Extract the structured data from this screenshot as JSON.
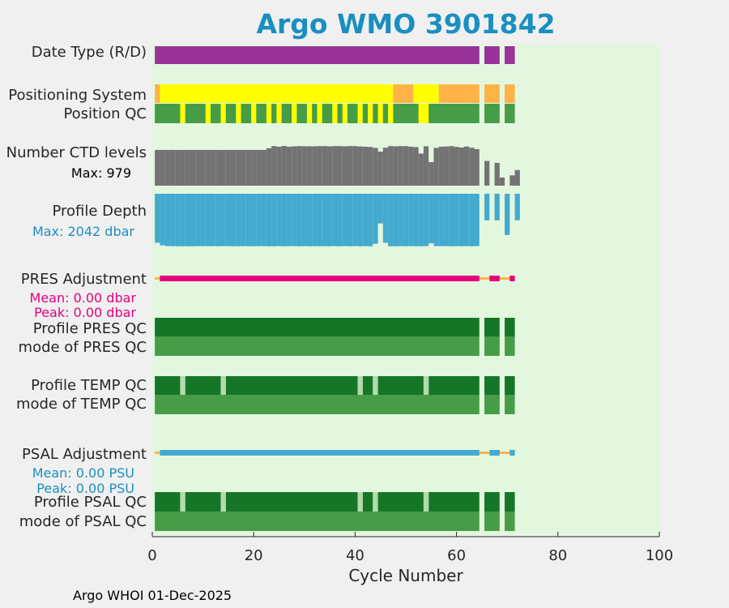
{
  "colors": {
    "background": "#f0f0f0",
    "plot_bg": "#e3f7df",
    "title": "#1a8fc0",
    "date_type": "#993399",
    "pos_gps": "#ffff00",
    "pos_orange": "#ffb347",
    "qc_dark": "#167627",
    "qc_light": "#479c47",
    "qc_pale": "#b3dbab",
    "ctd": "#737373",
    "depth": "#44aacf",
    "pres_adj": "#e6007e",
    "psal_adj": "#44aacf",
    "adj_thin": "#ffb347",
    "pres_text": "#e6007e",
    "psal_text": "#1a8fc0"
  },
  "chart_data": {
    "type": "table",
    "title": "Argo WMO 3901842",
    "xlabel": "Cycle Number",
    "xlim": [
      0,
      100
    ],
    "xticks": [
      0,
      20,
      40,
      60,
      80,
      100
    ],
    "date_type_cycles": [
      [
        0.5,
        64.5
      ],
      [
        65.5,
        68.5
      ],
      [
        69.5,
        71.5
      ]
    ],
    "positioning_system_label": "Positioning System",
    "date_type_label": "Date Type (R/D)",
    "position_qc_label": "Position QC",
    "positioning_segments": [
      {
        "range": [
          0.5,
          1.5
        ],
        "kind": "orange"
      },
      {
        "range": [
          1.5,
          47.5
        ],
        "kind": "gps"
      },
      {
        "range": [
          47.5,
          51.5
        ],
        "kind": "orange"
      },
      {
        "range": [
          51.5,
          56.5
        ],
        "kind": "gps"
      },
      {
        "range": [
          56.5,
          64.5
        ],
        "kind": "orange"
      },
      {
        "range": [
          65.5,
          68.5
        ],
        "kind": "orange"
      },
      {
        "range": [
          69.5,
          71.5
        ],
        "kind": "orange"
      }
    ],
    "position_qc_good": [
      [
        0.5,
        5.5
      ],
      [
        6.5,
        10.5
      ],
      [
        11.5,
        13.5
      ],
      [
        14.5,
        16.5
      ],
      [
        17.5,
        19.5
      ],
      [
        20.5,
        22.5
      ],
      [
        23.5,
        24.5
      ],
      [
        25.5,
        27.5
      ],
      [
        28.5,
        30.5
      ],
      [
        31.5,
        32.5
      ],
      [
        33.5,
        35.5
      ],
      [
        36.5,
        37.5
      ],
      [
        38.5,
        40.5
      ],
      [
        41.5,
        42.5
      ],
      [
        43.5,
        44.5
      ],
      [
        45.5,
        46.5
      ],
      [
        47.5,
        52.5
      ],
      [
        54.5,
        64.5
      ],
      [
        65.5,
        68.5
      ],
      [
        69.5,
        71.5
      ]
    ],
    "ctd_label": "Number CTD levels",
    "ctd_max_label": "Max: 979",
    "ctd_max": 979,
    "ctd_levels": [
      880,
      880,
      880,
      880,
      880,
      880,
      880,
      880,
      880,
      880,
      880,
      880,
      880,
      880,
      880,
      880,
      880,
      880,
      880,
      880,
      880,
      880,
      920,
      975,
      960,
      979,
      960,
      970,
      975,
      970,
      970,
      970,
      975,
      975,
      970,
      975,
      975,
      970,
      975,
      975,
      965,
      960,
      955,
      930,
      840,
      935,
      975,
      970,
      975,
      975,
      960,
      950,
      790,
      970,
      580,
      930,
      960,
      965,
      975,
      955,
      940,
      965,
      935,
      900,
      0,
      610,
      0,
      560,
      200,
      0,
      255,
      385
    ],
    "depth_label": "Profile Depth",
    "depth_max_label": "Max: 2042 dbar",
    "depth_max": 2042,
    "profile_depth": [
      1900,
      2000,
      2030,
      2030,
      2035,
      2035,
      2035,
      2035,
      2030,
      2030,
      2030,
      2030,
      2035,
      2030,
      2030,
      2035,
      2035,
      2030,
      2035,
      2035,
      2030,
      2030,
      2035,
      2035,
      2030,
      2035,
      2030,
      2030,
      2035,
      2030,
      2035,
      2030,
      2035,
      2030,
      2035,
      2030,
      2035,
      2030,
      2035,
      2030,
      2035,
      2030,
      2035,
      1940,
      1150,
      1900,
      2035,
      2035,
      2030,
      2035,
      2030,
      2035,
      2035,
      2030,
      1920,
      2030,
      2030,
      2030,
      2035,
      2030,
      2035,
      2030,
      2035,
      2030,
      0,
      1030,
      0,
      1030,
      0,
      1600,
      0,
      1030
    ],
    "pres_adj_label": "PRES Adjustment",
    "pres_mean_label": "Mean: 0.00 dbar",
    "pres_peak_label": "Peak: 0.00 dbar",
    "adj_thick": [
      [
        1.5,
        64.5
      ],
      [
        66.5,
        68.5
      ],
      [
        70.5,
        71.5
      ]
    ],
    "adj_thin": [
      [
        0.5,
        71.5
      ]
    ],
    "profile_pres_qc_label": "Profile PRES QC",
    "mode_pres_qc_label": "mode of PRES QC",
    "profile_temp_qc_label": "Profile TEMP QC",
    "mode_temp_qc_label": "mode of TEMP QC",
    "profile_psal_qc_label": "Profile PSAL QC",
    "mode_psal_qc_label": "mode of PSAL QC",
    "psal_adj_label": "PSAL Adjustment",
    "psal_mean_label": "Mean: 0.00 PSU",
    "psal_peak_label": "Peak: 0.00 PSU",
    "profile_qc_dark_ranges": [
      [
        0.5,
        5.5
      ],
      [
        6.5,
        13.5
      ],
      [
        14.5,
        40.5
      ],
      [
        41.5,
        43.5
      ],
      [
        44.5,
        53.5
      ],
      [
        54.5,
        64.5
      ],
      [
        65.5,
        68.5
      ],
      [
        69.5,
        71.5
      ]
    ],
    "profile_qc_pale_gaps": [
      [
        5.5,
        6.5
      ],
      [
        13.5,
        14.5
      ],
      [
        40.5,
        41.5
      ],
      [
        43.5,
        44.5
      ],
      [
        53.5,
        54.5
      ]
    ],
    "pres_profile_qc_dark": [
      [
        0.5,
        64.5
      ],
      [
        65.5,
        68.5
      ],
      [
        69.5,
        71.5
      ]
    ],
    "mode_qc_light": [
      [
        0.5,
        64.5
      ],
      [
        65.5,
        68.5
      ],
      [
        69.5,
        71.5
      ]
    ]
  },
  "footer": "Argo WHOI 01-Dec-2025"
}
